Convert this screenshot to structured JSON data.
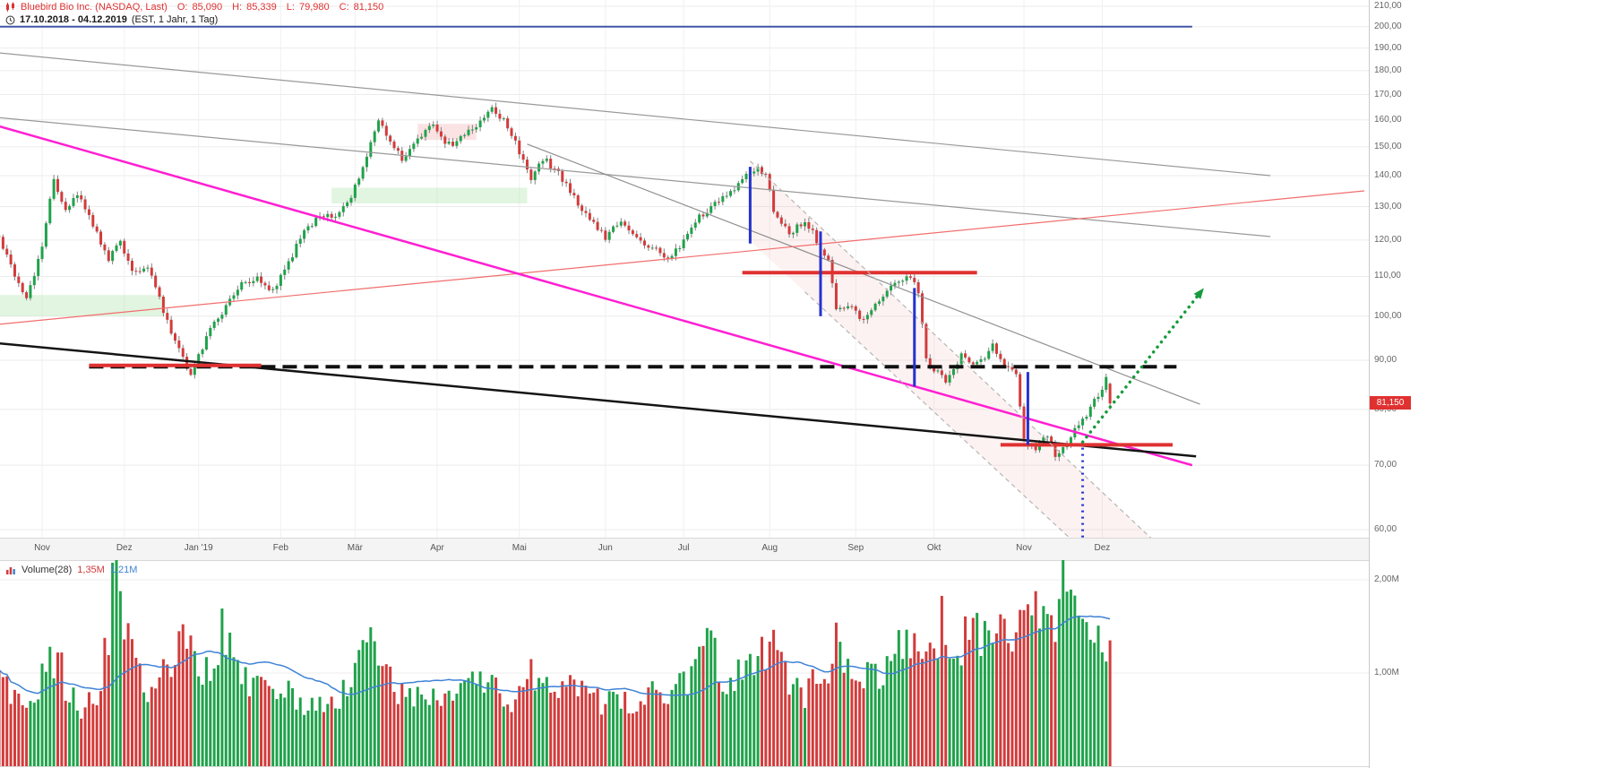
{
  "header": {
    "symbol_label": "Bluebird Bio Inc. (NASDAQ, Last)",
    "open_label": "O:",
    "open": "85,090",
    "high_label": "H:",
    "high": "85,339",
    "low_label": "L:",
    "low": "79,980",
    "close_label": "C:",
    "close": "81,150",
    "range": "17.10.2018 - 04.12.2019",
    "range_suffix": "(EST, 1 Jahr, 1 Tag)"
  },
  "price_axis": {
    "labels": [
      "210,00",
      "200,00",
      "190,00",
      "180,00",
      "170,00",
      "160,00",
      "150,00",
      "140,00",
      "130,00",
      "120,00",
      "110,00",
      "100,00",
      "90,00",
      "80,00",
      "70,00",
      "60,00"
    ],
    "values": [
      210,
      200,
      190,
      180,
      170,
      160,
      150,
      140,
      130,
      120,
      110,
      100,
      90,
      80,
      70,
      60
    ],
    "current_price": 81.15,
    "current_price_label": "81,150",
    "tag_color": "#e03131"
  },
  "time_axis": {
    "months": [
      {
        "label": "Nov",
        "day": 11
      },
      {
        "label": "Dez",
        "day": 32
      },
      {
        "label": "Jan '19",
        "day": 51
      },
      {
        "label": "Feb",
        "day": 72
      },
      {
        "label": "Mär",
        "day": 91
      },
      {
        "label": "Apr",
        "day": 112
      },
      {
        "label": "Mai",
        "day": 133
      },
      {
        "label": "Jun",
        "day": 155
      },
      {
        "label": "Jul",
        "day": 175
      },
      {
        "label": "Aug",
        "day": 197
      },
      {
        "label": "Sep",
        "day": 219
      },
      {
        "label": "Okt",
        "day": 239
      },
      {
        "label": "Nov",
        "day": 262
      },
      {
        "label": "Dez",
        "day": 282
      }
    ]
  },
  "volume_pane": {
    "legend": {
      "name": "Volume(28)",
      "value_current": "1,35M",
      "value_ma": "1,21M"
    },
    "axis_labels": [
      {
        "label": "2,00M",
        "value": 2.0
      },
      {
        "label": "1,00M",
        "value": 1.0
      }
    ]
  },
  "chart_data": {
    "type": "candlestick",
    "symbol": "Bluebird Bio Inc.",
    "exchange": "NASDAQ",
    "period": "17.10.2018 - 04.12.2019",
    "timezone": "EST",
    "interval": "1 Tag",
    "scale": "log",
    "price_range": [
      60,
      210
    ],
    "days_total": 285,
    "last_candle": {
      "o": 85.09,
      "h": 85.339,
      "l": 79.98,
      "c": 81.15
    },
    "last_volume_m": 1.35,
    "volume_ma_window": 28,
    "price_anchors": [
      [
        0,
        120
      ],
      [
        4,
        110
      ],
      [
        7,
        104
      ],
      [
        11,
        118
      ],
      [
        14,
        139
      ],
      [
        17,
        128
      ],
      [
        20,
        134
      ],
      [
        24,
        124
      ],
      [
        28,
        114
      ],
      [
        31,
        120
      ],
      [
        34,
        111
      ],
      [
        38,
        113
      ],
      [
        42,
        101
      ],
      [
        46,
        92
      ],
      [
        49,
        87
      ],
      [
        53,
        95
      ],
      [
        57,
        101
      ],
      [
        62,
        108
      ],
      [
        66,
        110
      ],
      [
        70,
        106
      ],
      [
        74,
        114
      ],
      [
        78,
        122
      ],
      [
        82,
        128
      ],
      [
        86,
        126
      ],
      [
        90,
        133
      ],
      [
        94,
        147
      ],
      [
        97,
        160
      ],
      [
        100,
        152
      ],
      [
        103,
        146
      ],
      [
        107,
        153
      ],
      [
        111,
        158
      ],
      [
        114,
        150
      ],
      [
        118,
        153
      ],
      [
        122,
        158
      ],
      [
        126,
        164
      ],
      [
        130,
        158
      ],
      [
        133,
        148
      ],
      [
        136,
        139
      ],
      [
        139,
        146
      ],
      [
        143,
        141
      ],
      [
        147,
        133
      ],
      [
        151,
        126
      ],
      [
        155,
        121
      ],
      [
        159,
        125
      ],
      [
        163,
        120
      ],
      [
        167,
        118
      ],
      [
        171,
        114
      ],
      [
        175,
        120
      ],
      [
        179,
        127
      ],
      [
        183,
        131
      ],
      [
        187,
        134
      ],
      [
        191,
        140
      ],
      [
        194,
        142
      ],
      [
        196,
        141
      ],
      [
        198,
        128
      ],
      [
        202,
        122
      ],
      [
        206,
        126
      ],
      [
        210,
        118
      ],
      [
        212,
        114
      ],
      [
        214,
        101
      ],
      [
        218,
        102
      ],
      [
        221,
        99
      ],
      [
        225,
        104
      ],
      [
        229,
        108
      ],
      [
        233,
        110
      ],
      [
        235,
        106
      ],
      [
        237,
        90
      ],
      [
        239,
        88
      ],
      [
        242,
        86
      ],
      [
        246,
        91
      ],
      [
        250,
        89
      ],
      [
        254,
        93
      ],
      [
        258,
        88
      ],
      [
        260,
        87
      ],
      [
        262,
        74
      ],
      [
        265,
        73
      ],
      [
        268,
        75
      ],
      [
        270,
        71.5
      ],
      [
        273,
        74
      ],
      [
        276,
        77
      ],
      [
        279,
        80
      ],
      [
        281,
        83
      ],
      [
        283,
        86
      ],
      [
        284,
        81.15
      ]
    ],
    "volume_anchors_m": [
      [
        0,
        0.9
      ],
      [
        4,
        0.7
      ],
      [
        8,
        0.8
      ],
      [
        12,
        1.0
      ],
      [
        14,
        1.2
      ],
      [
        18,
        0.8
      ],
      [
        22,
        0.6
      ],
      [
        26,
        0.9
      ],
      [
        30,
        2.1
      ],
      [
        32,
        1.5
      ],
      [
        35,
        1.0
      ],
      [
        40,
        0.8
      ],
      [
        45,
        1.2
      ],
      [
        47,
        1.8
      ],
      [
        49,
        1.3
      ],
      [
        53,
        1.0
      ],
      [
        57,
        1.5
      ],
      [
        60,
        1.1
      ],
      [
        66,
        0.8
      ],
      [
        72,
        0.8
      ],
      [
        78,
        0.7
      ],
      [
        84,
        0.6
      ],
      [
        90,
        0.9
      ],
      [
        94,
        1.4
      ],
      [
        97,
        1.1
      ],
      [
        101,
        0.8
      ],
      [
        107,
        0.7
      ],
      [
        113,
        0.7
      ],
      [
        119,
        0.8
      ],
      [
        126,
        0.9
      ],
      [
        131,
        0.7
      ],
      [
        136,
        1.0
      ],
      [
        141,
        0.8
      ],
      [
        147,
        0.9
      ],
      [
        153,
        0.7
      ],
      [
        159,
        0.65
      ],
      [
        165,
        0.7
      ],
      [
        171,
        0.85
      ],
      [
        177,
        1.0
      ],
      [
        181,
        1.35
      ],
      [
        185,
        0.9
      ],
      [
        190,
        0.95
      ],
      [
        194,
        1.1
      ],
      [
        197,
        1.3
      ],
      [
        201,
        0.95
      ],
      [
        206,
        0.8
      ],
      [
        211,
        1.0
      ],
      [
        214,
        1.3
      ],
      [
        219,
        0.9
      ],
      [
        224,
        1.0
      ],
      [
        229,
        1.2
      ],
      [
        234,
        1.4
      ],
      [
        237,
        1.3
      ],
      [
        241,
        1.5
      ],
      [
        245,
        1.1
      ],
      [
        249,
        1.6
      ],
      [
        253,
        1.2
      ],
      [
        257,
        1.4
      ],
      [
        261,
        1.5
      ],
      [
        263,
        1.8
      ],
      [
        266,
        1.4
      ],
      [
        270,
        1.6
      ],
      [
        272,
        2.05
      ],
      [
        274,
        1.9
      ],
      [
        276,
        1.5
      ],
      [
        279,
        1.3
      ],
      [
        282,
        1.5
      ],
      [
        284,
        1.35
      ]
    ]
  },
  "annotations": {
    "lines": [
      {
        "name": "horizontal-line-200",
        "d1": -1,
        "p1": 200,
        "d2": 305,
        "p2": 200,
        "color": "#4056a8",
        "width": 2,
        "dash": null
      },
      {
        "name": "gray-trendline-upper",
        "d1": -1,
        "p1": 188,
        "d2": 325,
        "p2": 140,
        "color": "#999999",
        "width": 1.2,
        "dash": null
      },
      {
        "name": "gray-trendline-mid",
        "d1": -1,
        "p1": 161,
        "d2": 325,
        "p2": 121,
        "color": "#999999",
        "width": 1.2,
        "dash": null
      },
      {
        "name": "gray-trendline-steep",
        "d1": 135,
        "p1": 151,
        "d2": 307,
        "p2": 81,
        "color": "#8f8f8f",
        "width": 1.2,
        "dash": null
      },
      {
        "name": "red-rising-trendline",
        "d1": -1,
        "p1": 98,
        "d2": 349,
        "p2": 135,
        "color": "#f26d6d",
        "width": 1.2,
        "dash": null
      },
      {
        "name": "magenta-downtrend-line",
        "d1": -1,
        "p1": 158,
        "d2": 305,
        "p2": 70,
        "color": "#ff1fd2",
        "width": 2.5,
        "dash": null
      },
      {
        "name": "black-trendline",
        "d1": -1,
        "p1": 93.8,
        "d2": 306,
        "p2": 71.5,
        "color": "#141414",
        "width": 2.5,
        "dash": null
      },
      {
        "name": "black-dashed-support",
        "d1": 23,
        "p1": 88.6,
        "d2": 301,
        "p2": 88.6,
        "color": "#101010",
        "width": 4,
        "dash": "16,8"
      },
      {
        "name": "red-support-left",
        "d1": 23,
        "p1": 88.9,
        "d2": 67,
        "p2": 88.9,
        "color": "#e03131",
        "width": 4,
        "dash": null
      },
      {
        "name": "red-resistance-mid",
        "d1": 190,
        "p1": 111,
        "d2": 250,
        "p2": 111,
        "color": "#e03131",
        "width": 4,
        "dash": null
      },
      {
        "name": "red-support-right",
        "d1": 256,
        "p1": 73.5,
        "d2": 300,
        "p2": 73.5,
        "color": "#e03131",
        "width": 4,
        "dash": null
      },
      {
        "name": "channel-upper-dashed",
        "d1": 192,
        "p1": 145,
        "d2": 297,
        "p2": 57.5,
        "color": "#b5b5b5",
        "width": 1.2,
        "dash": "5,4"
      },
      {
        "name": "channel-lower-dashed",
        "d1": 206,
        "p1": 106,
        "d2": 297,
        "p2": 48,
        "color": "#b5b5b5",
        "width": 1.2,
        "dash": "5,4"
      }
    ],
    "vertical_lines": [
      {
        "name": "blue-impulse-1",
        "d": 192,
        "p1": 143,
        "p2": 119,
        "color": "#2433cf",
        "width": 3,
        "dash": null
      },
      {
        "name": "blue-impulse-2",
        "d": 210,
        "p1": 122.5,
        "p2": 100,
        "color": "#2433cf",
        "width": 3,
        "dash": null
      },
      {
        "name": "blue-impulse-3",
        "d": 234,
        "p1": 107,
        "p2": 84.5,
        "color": "#2433cf",
        "width": 3,
        "dash": null
      },
      {
        "name": "blue-impulse-4",
        "d": 263,
        "p1": 87.5,
        "p2": 73.5,
        "color": "#2433cf",
        "width": 3,
        "dash": null
      },
      {
        "name": "blue-dotted-projection",
        "d": 277,
        "p1": 73,
        "p2": 57,
        "color": "#2433cf",
        "width": 3,
        "dash": "2,5"
      }
    ],
    "arrow": {
      "name": "green-projection-arrow",
      "d1": 277,
      "p1": 74,
      "d2": 308,
      "p2": 107,
      "color": "#169b3c",
      "width": 3.5
    },
    "zones": [
      {
        "name": "support-zone-left",
        "d1": -1,
        "d2": 42,
        "p1": 100,
        "p2": 105.2,
        "color": "rgba(170,225,170,0.35)"
      },
      {
        "name": "support-zone-mid",
        "d1": 85,
        "d2": 135,
        "p1": 131,
        "p2": 136,
        "color": "rgba(180,230,180,0.4)"
      },
      {
        "name": "resistance-zone-apr",
        "d1": 107,
        "d2": 122,
        "p1": 152.5,
        "p2": 158.5,
        "color": "rgba(245,185,185,0.4)"
      }
    ],
    "channel_fill": {
      "name": "falling-channel-fill",
      "points": [
        [
          192,
          145
        ],
        [
          297,
          57.5
        ],
        [
          297,
          48
        ],
        [
          206,
          106
        ],
        [
          192,
          119.7
        ]
      ],
      "color": "rgba(243,170,170,0.15)"
    }
  },
  "style": {
    "candle_up": "#1fa24a",
    "candle_down": "#d23b3b",
    "wick": "#808080",
    "grid": "#ebebeb",
    "volume_grid": "#eeeeee",
    "volume_ma": "#3f83d6"
  }
}
